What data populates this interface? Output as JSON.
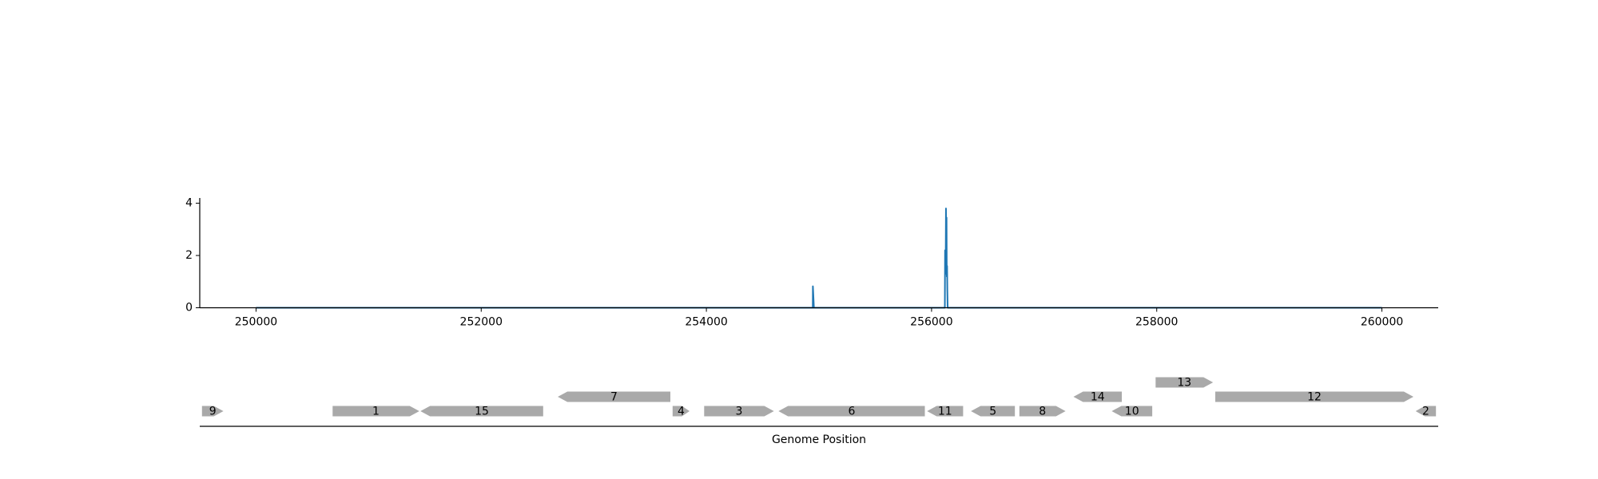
{
  "chart_data": [
    {
      "type": "line",
      "title": "",
      "xlabel": "",
      "ylabel": "",
      "xlim": [
        249500,
        260500
      ],
      "ylim": [
        0,
        4.2
      ],
      "x_ticks": [
        250000,
        252000,
        254000,
        256000,
        258000,
        260000
      ],
      "x_tick_labels": [
        "250000",
        "252000",
        "254000",
        "256000",
        "258000",
        "260000"
      ],
      "y_ticks": [
        0,
        2,
        4
      ],
      "y_tick_labels": [
        "0",
        "2",
        "4"
      ],
      "grid": false,
      "color": "#1f77b4",
      "series": [
        {
          "x": [
            250000,
            254935,
            254945,
            254946,
            254955,
            256110,
            256118,
            256120,
            256125,
            256128,
            256130,
            256133,
            256135,
            256138,
            256140,
            256143,
            256150,
            256160,
            260000
          ],
          "y": [
            0,
            0,
            0,
            0.82,
            0,
            0,
            0,
            2.2,
            1.3,
            3.8,
            2.5,
            3.45,
            1.2,
            1.6,
            0.7,
            0,
            0,
            0,
            0
          ]
        }
      ]
    },
    {
      "type": "gene-map",
      "xlabel": "Genome Position",
      "xlim": [
        249500,
        260500
      ],
      "color": "#a9a9a9",
      "genes": [
        {
          "label": "9",
          "start": 249520,
          "end": 249710,
          "strand": "+",
          "row": 0
        },
        {
          "label": "1",
          "start": 250680,
          "end": 251450,
          "strand": "+",
          "row": 0
        },
        {
          "label": "15",
          "start": 251460,
          "end": 252550,
          "strand": "-",
          "row": 0
        },
        {
          "label": "7",
          "start": 252680,
          "end": 253680,
          "strand": "-",
          "row": 1
        },
        {
          "label": "4",
          "start": 253700,
          "end": 253850,
          "strand": "+",
          "row": 0
        },
        {
          "label": "3",
          "start": 253980,
          "end": 254600,
          "strand": "+",
          "row": 0
        },
        {
          "label": "6",
          "start": 254640,
          "end": 255940,
          "strand": "-",
          "row": 0
        },
        {
          "label": "11",
          "start": 255960,
          "end": 256280,
          "strand": "-",
          "row": 0
        },
        {
          "label": "5",
          "start": 256350,
          "end": 256740,
          "strand": "-",
          "row": 0
        },
        {
          "label": "8",
          "start": 256780,
          "end": 257190,
          "strand": "+",
          "row": 0
        },
        {
          "label": "14",
          "start": 257260,
          "end": 257690,
          "strand": "-",
          "row": 1
        },
        {
          "label": "10",
          "start": 257600,
          "end": 257960,
          "strand": "-",
          "row": 0
        },
        {
          "label": "13",
          "start": 257990,
          "end": 258500,
          "strand": "+",
          "row": 2
        },
        {
          "label": "12",
          "start": 258520,
          "end": 260280,
          "strand": "+",
          "row": 1
        },
        {
          "label": "2",
          "start": 260300,
          "end": 260480,
          "strand": "-",
          "row": 0
        }
      ]
    }
  ]
}
